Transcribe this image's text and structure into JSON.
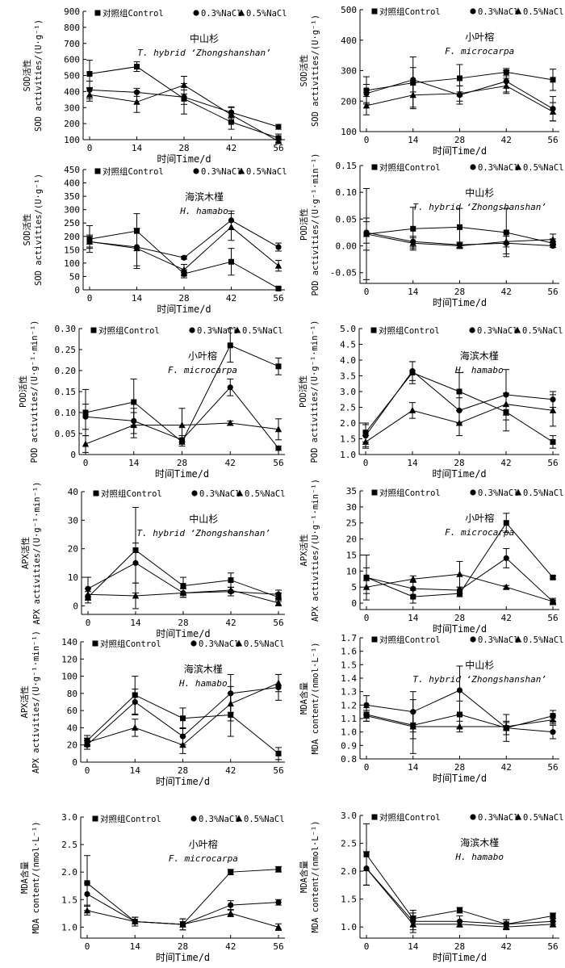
{
  "legend": [
    "对照组Control",
    "0.3%NaCl",
    "0.5%NaCl"
  ],
  "x_label": "时间Time/d",
  "chart_data": [
    {
      "type": "line",
      "title": "中山杉",
      "subtitle": "T. hybrid ‘Zhongshanshan’",
      "ylabel_cn": "SOD活性",
      "ylabel_en": "SOD activities/(U·g⁻¹)",
      "ylim": [
        100,
        900
      ],
      "yticks": [
        "100",
        "200",
        "300",
        "400",
        "500",
        "600",
        "700",
        "800",
        "900"
      ],
      "x": [
        0,
        14,
        28,
        42,
        56
      ],
      "series": [
        {
          "name": "对照组Control",
          "marker": "square",
          "values": [
            510,
            555,
            355,
            210,
            110
          ],
          "err": [
            85,
            30,
            95,
            45,
            25
          ]
        },
        {
          "name": "0.3%NaCl",
          "marker": "circle",
          "values": [
            410,
            395,
            365,
            270,
            180
          ],
          "err": [
            55,
            25,
            45,
            35,
            15
          ]
        },
        {
          "name": "0.5%NaCl",
          "marker": "triangle",
          "values": [
            380,
            335,
            440,
            255,
            90
          ],
          "err": [
            40,
            65,
            55,
            45,
            15
          ]
        }
      ]
    },
    {
      "type": "line",
      "title": "小叶榕",
      "subtitle": "F. microcarpa",
      "ylabel_cn": "SOD活性",
      "ylabel_en": "SOD activities/(U·g⁻¹)",
      "ylim": [
        100,
        500
      ],
      "yticks": [
        "100",
        "200",
        "300",
        "400",
        "500"
      ],
      "x": [
        0,
        14,
        28,
        42,
        56
      ],
      "series": [
        {
          "name": "对照组Control",
          "marker": "square",
          "values": [
            235,
            260,
            275,
            295,
            270
          ],
          "err": [
            45,
            85,
            45,
            12,
            35
          ]
        },
        {
          "name": "0.3%NaCl",
          "marker": "circle",
          "values": [
            225,
            270,
            220,
            265,
            175
          ],
          "err": [
            30,
            40,
            30,
            35,
            40
          ]
        },
        {
          "name": "0.5%NaCl",
          "marker": "triangle",
          "values": [
            185,
            220,
            225,
            250,
            165
          ],
          "err": [
            30,
            40,
            25,
            25,
            30
          ]
        }
      ]
    },
    {
      "type": "line",
      "title": "海滨木槿",
      "subtitle": "H. hamabo",
      "ylabel_cn": "SOD活性",
      "ylabel_en": "SOD activities/(U·g⁻¹)",
      "ylim": [
        0,
        450
      ],
      "yticks": [
        "0",
        "50",
        "100",
        "150",
        "200",
        "250",
        "300",
        "350",
        "400",
        "450"
      ],
      "x": [
        0,
        14,
        28,
        42,
        56
      ],
      "series": [
        {
          "name": "对照组Control",
          "marker": "square",
          "values": [
            190,
            220,
            60,
            105,
            5
          ],
          "err": [
            50,
            65,
            15,
            50,
            5
          ]
        },
        {
          "name": "0.3%NaCl",
          "marker": "circle",
          "values": [
            180,
            160,
            120,
            260,
            160
          ],
          "err": [
            25,
            70,
            5,
            35,
            15
          ]
        },
        {
          "name": "0.5%NaCl",
          "marker": "triangle",
          "values": [
            180,
            155,
            75,
            235,
            90
          ],
          "err": [
            20,
            75,
            20,
            50,
            20
          ]
        }
      ]
    },
    {
      "type": "line",
      "title": "中山杉",
      "subtitle": "T. hybrid ‘Zhongshanshan’",
      "ylabel_cn": "POD活性",
      "ylabel_en": "POD activities/(U·g⁻¹·min⁻¹)",
      "ylim": [
        -0.07,
        0.15
      ],
      "yticks": [
        "-0.05",
        "0.00",
        "0.05",
        "0.10",
        "0.15"
      ],
      "x": [
        0,
        14,
        28,
        42,
        56
      ],
      "series": [
        {
          "name": "对照组Control",
          "marker": "square",
          "values": [
            0.022,
            0.032,
            0.035,
            0.025,
            0.005
          ],
          "err": [
            0.085,
            0.04,
            0.035,
            0.045,
            0.008
          ]
        },
        {
          "name": "0.3%NaCl",
          "marker": "circle",
          "values": [
            0.025,
            0.008,
            0.002,
            0.005,
            0.0
          ],
          "err": [
            0.02,
            0.01,
            0.005,
            0.02,
            0.003
          ]
        },
        {
          "name": "0.5%NaCl",
          "marker": "triangle",
          "values": [
            0.022,
            0.005,
            0.0,
            0.008,
            0.012
          ],
          "err": [
            0.03,
            0.01,
            0.005,
            0.01,
            0.01
          ]
        }
      ]
    },
    {
      "type": "line",
      "title": "小叶榕",
      "subtitle": "F. microcarpa",
      "ylabel_cn": "POD活性",
      "ylabel_en": "POD activities/(U·g⁻¹·min⁻¹)",
      "ylim": [
        0,
        0.3
      ],
      "yticks": [
        "0",
        "0.05",
        "0.10",
        "0.15",
        "0.20",
        "0.25",
        "0.30"
      ],
      "x": [
        0,
        14,
        28,
        42,
        56
      ],
      "series": [
        {
          "name": "对照组Control",
          "marker": "square",
          "values": [
            0.1,
            0.125,
            0.03,
            0.26,
            0.21
          ],
          "err": [
            0.055,
            0.055,
            0.01,
            0.04,
            0.02
          ]
        },
        {
          "name": "0.3%NaCl",
          "marker": "circle",
          "values": [
            0.09,
            0.08,
            0.035,
            0.16,
            0.015
          ],
          "err": [
            0.03,
            0.03,
            0.01,
            0.02,
            0.005
          ]
        },
        {
          "name": "0.5%NaCl",
          "marker": "triangle",
          "values": [
            0.025,
            0.07,
            0.07,
            0.075,
            0.06
          ],
          "err": [
            0.02,
            0.03,
            0.04,
            0.005,
            0.025
          ]
        }
      ]
    },
    {
      "type": "line",
      "title": "海滨木槿",
      "subtitle": "H. hamabo",
      "ylabel_cn": "POD活性",
      "ylabel_en": "POD activities/(U·g⁻¹·min⁻¹)",
      "ylim": [
        1.0,
        5.0
      ],
      "yticks": [
        "1.0",
        "1.5",
        "2.0",
        "2.5",
        "3.0",
        "3.5",
        "4.0",
        "4.5",
        "5.0"
      ],
      "x": [
        0,
        14,
        28,
        42,
        56
      ],
      "series": [
        {
          "name": "对照组Control",
          "marker": "square",
          "values": [
            1.7,
            3.6,
            3.0,
            2.35,
            1.4
          ],
          "err": [
            0.3,
            0.35,
            0.6,
            0.6,
            0.2
          ]
        },
        {
          "name": "0.3%NaCl",
          "marker": "circle",
          "values": [
            1.6,
            3.65,
            2.4,
            2.9,
            2.75
          ],
          "err": [
            0.35,
            0.3,
            0.4,
            0.8,
            0.25
          ]
        },
        {
          "name": "0.5%NaCl",
          "marker": "triangle",
          "values": [
            1.4,
            2.4,
            2.0,
            2.6,
            2.4
          ],
          "err": [
            0.2,
            0.25,
            0.4,
            0.35,
            0.5
          ]
        }
      ]
    },
    {
      "type": "line",
      "title": "中山杉",
      "subtitle": "T. hybrid ‘Zhongshanshan’",
      "ylabel_cn": "APX活性",
      "ylabel_en": "APX activities/(U·g⁻¹·min⁻¹)",
      "ylim": [
        -3,
        40
      ],
      "yticks": [
        "0",
        "10",
        "20",
        "30",
        "40"
      ],
      "x": [
        0,
        14,
        28,
        42,
        56
      ],
      "series": [
        {
          "name": "对照组Control",
          "marker": "square",
          "values": [
            3,
            19.5,
            7,
            9,
            3
          ],
          "err": [
            2,
            15,
            3,
            2.5,
            1.5
          ]
        },
        {
          "name": "0.3%NaCl",
          "marker": "circle",
          "values": [
            6,
            15,
            4.5,
            5,
            4
          ],
          "err": [
            4,
            7,
            1.5,
            1.5,
            1.5
          ]
        },
        {
          "name": "0.5%NaCl",
          "marker": "triangle",
          "values": [
            4,
            3.5,
            4.5,
            5.5,
            1
          ],
          "err": [
            2,
            4.5,
            1.5,
            1,
            1
          ]
        }
      ]
    },
    {
      "type": "line",
      "title": "小叶榕",
      "subtitle": "F. microcarpa",
      "ylabel_cn": "APX活性",
      "ylabel_en": "APX activities/(U·g⁻¹·min⁻¹)",
      "ylim": [
        -2,
        35
      ],
      "yticks": [
        "0",
        "5",
        "10",
        "15",
        "20",
        "25",
        "30",
        "35"
      ],
      "x": [
        0,
        14,
        28,
        42,
        56
      ],
      "series": [
        {
          "name": "对照组Control",
          "marker": "square",
          "values": [
            8,
            2,
            3,
            25,
            8
          ],
          "err": [
            7,
            2,
            1,
            3,
            0.5
          ]
        },
        {
          "name": "0.3%NaCl",
          "marker": "circle",
          "values": [
            8,
            4.5,
            4,
            14,
            0.5
          ],
          "err": [
            3,
            2,
            1,
            3,
            1
          ]
        },
        {
          "name": "0.5%NaCl",
          "marker": "triangle",
          "values": [
            5,
            7.5,
            9,
            5,
            0.5
          ],
          "err": [
            2,
            1,
            4,
            0.5,
            0.5
          ]
        }
      ]
    },
    {
      "type": "line",
      "title": "海滨木槿",
      "subtitle": "H. hamabo",
      "ylabel_cn": "APX活性",
      "ylabel_en": "APX activities/(U·g⁻¹·min⁻¹)",
      "ylim": [
        0,
        140
      ],
      "yticks": [
        "0",
        "20",
        "40",
        "60",
        "80",
        "100",
        "120",
        "140"
      ],
      "x": [
        0,
        14,
        28,
        42,
        56
      ],
      "series": [
        {
          "name": "对照组Control",
          "marker": "square",
          "values": [
            25,
            78,
            51,
            55,
            10
          ],
          "err": [
            6,
            22,
            12,
            25,
            7
          ]
        },
        {
          "name": "0.3%NaCl",
          "marker": "circle",
          "values": [
            20,
            70,
            30,
            80,
            87
          ],
          "err": [
            5,
            15,
            10,
            22,
            15
          ]
        },
        {
          "name": "0.5%NaCl",
          "marker": "triangle",
          "values": [
            23,
            40,
            20,
            68,
            92
          ],
          "err": [
            5,
            10,
            10,
            20,
            10
          ]
        }
      ]
    },
    {
      "type": "line",
      "title": "中山杉",
      "subtitle": "T. hybrid ‘Zhongshanshan’",
      "ylabel_cn": "MDA含量",
      "ylabel_en": "MDA content/(nmol·L⁻¹)",
      "ylim": [
        0.8,
        1.7
      ],
      "yticks": [
        "0.8",
        "0.9",
        "1.0",
        "1.1",
        "1.2",
        "1.3",
        "1.4",
        "1.5",
        "1.6",
        "1.7"
      ],
      "x": [
        0,
        14,
        28,
        42,
        56
      ],
      "series": [
        {
          "name": "对照组Control",
          "marker": "square",
          "values": [
            1.13,
            1.05,
            1.13,
            1.03,
            1.12
          ],
          "err": [
            0.05,
            0.1,
            0.1,
            0.05,
            0.04
          ]
        },
        {
          "name": "0.3%NaCl",
          "marker": "circle",
          "values": [
            1.2,
            1.15,
            1.31,
            1.03,
            1.0
          ],
          "err": [
            0.07,
            0.15,
            0.18,
            0.1,
            0.05
          ]
        },
        {
          "name": "0.5%NaCl",
          "marker": "triangle",
          "values": [
            1.12,
            1.04,
            1.04,
            1.04,
            1.09
          ],
          "err": [
            0.04,
            0.2,
            0.04,
            0.03,
            0.03
          ]
        }
      ]
    },
    {
      "type": "line",
      "title": "小叶榕",
      "subtitle": "F. microcarpa",
      "ylabel_cn": "MDA含量",
      "ylabel_en": "MDA content/(nmol·L⁻¹)",
      "ylim": [
        0.8,
        3.0
      ],
      "yticks": [
        "1.0",
        "1.5",
        "2.0",
        "2.5",
        "3.0"
      ],
      "x": [
        0,
        14,
        28,
        42,
        56
      ],
      "series": [
        {
          "name": "对照组Control",
          "marker": "square",
          "values": [
            1.8,
            1.1,
            1.05,
            2.0,
            2.05
          ],
          "err": [
            0.5,
            0.08,
            0.1,
            0.05,
            0.05
          ]
        },
        {
          "name": "0.3%NaCl",
          "marker": "circle",
          "values": [
            1.6,
            1.1,
            1.05,
            1.4,
            1.45
          ],
          "err": [
            0.2,
            0.08,
            0.1,
            0.08,
            0.05
          ]
        },
        {
          "name": "0.5%NaCl",
          "marker": "triangle",
          "values": [
            1.3,
            1.1,
            1.05,
            1.25,
            1.0
          ],
          "err": [
            0.08,
            0.08,
            0.05,
            0.06,
            0.06
          ]
        }
      ]
    },
    {
      "type": "line",
      "title": "海滨木槿",
      "subtitle": "H. hamabo",
      "ylabel_cn": "MDA含量",
      "ylabel_en": "MDA content/(nmol·L⁻¹)",
      "ylim": [
        0.8,
        3.0
      ],
      "yticks": [
        "1.0",
        "1.5",
        "2.0",
        "2.5",
        "3.0"
      ],
      "x": [
        0,
        14,
        28,
        42,
        56
      ],
      "series": [
        {
          "name": "对照组Control",
          "marker": "square",
          "values": [
            2.3,
            1.15,
            1.3,
            1.05,
            1.2
          ],
          "err": [
            0.55,
            0.15,
            0.05,
            0.08,
            0.05
          ]
        },
        {
          "name": "0.3%NaCl",
          "marker": "circle",
          "values": [
            2.05,
            1.1,
            1.1,
            1.05,
            1.1
          ],
          "err": [
            0.3,
            0.15,
            0.1,
            0.08,
            0.05
          ]
        },
        {
          "name": "0.5%NaCl",
          "marker": "triangle",
          "values": [
            2.05,
            1.05,
            1.05,
            1.0,
            1.05
          ],
          "err": [
            0.3,
            0.15,
            0.05,
            0.05,
            0.05
          ]
        }
      ]
    }
  ]
}
